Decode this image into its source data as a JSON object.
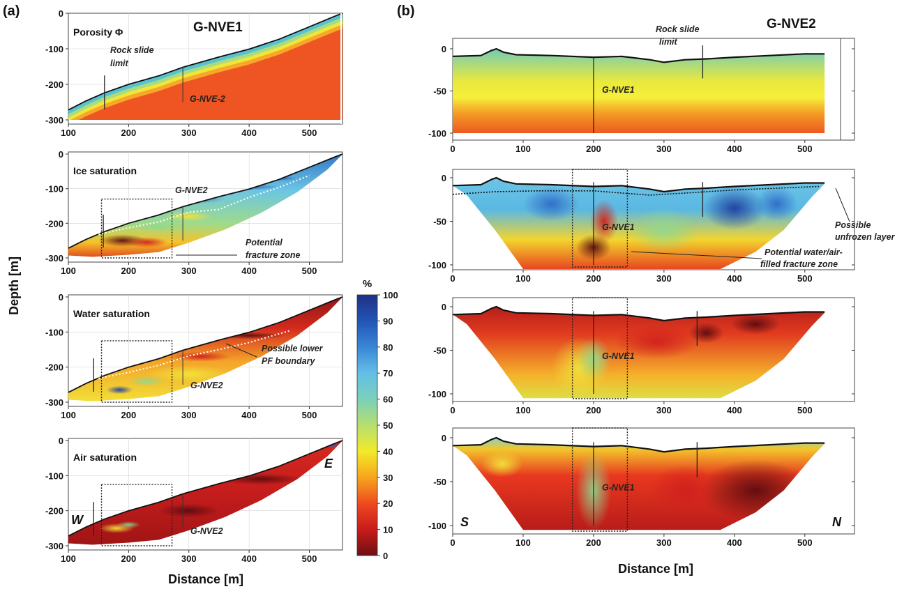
{
  "panel_labels": {
    "a": "(a)",
    "b": "(b)"
  },
  "left": {
    "profile_name": "G-NVE1",
    "y_label": "Depth [m]",
    "x_label": "Distance [m]",
    "x_ticks": [
      "100",
      "200",
      "300",
      "400",
      "500"
    ],
    "y_ticks": [
      "0",
      "-100",
      "-200",
      "-300"
    ],
    "subplots": [
      {
        "title": "Porosity Φ",
        "crossing_label": "G-NVE-2",
        "notes": [
          "Rock slide",
          "limit"
        ]
      },
      {
        "title": "Ice saturation",
        "crossing_label": "G-NVE2",
        "notes": [
          "Potential",
          "fracture zone"
        ]
      },
      {
        "title": "Water saturation",
        "crossing_label": "G-NVE2",
        "notes": [
          "Possible lower",
          "PF boundary"
        ]
      },
      {
        "title": "Air saturation",
        "crossing_label": "G-NVE2",
        "notes": [],
        "dir_left": "W",
        "dir_right": "E"
      }
    ]
  },
  "right": {
    "profile_name": "G-NVE2",
    "x_label": "Distance [m]",
    "x_ticks": [
      "0",
      "100",
      "200",
      "300",
      "400",
      "500"
    ],
    "y_ticks": [
      "0",
      "-50",
      "-100"
    ],
    "crossing_label": "G-NVE1",
    "rock_slide_note": [
      "Rock slide",
      "limit"
    ],
    "ice_notes": {
      "unfrozen": [
        "Possible",
        "unfrozen layer"
      ],
      "fracture": [
        "Potential water/air-",
        "filled fracture zone"
      ]
    },
    "dir_left": "S",
    "dir_right": "N"
  },
  "colorbar": {
    "unit": "%",
    "ticks": [
      "100",
      "90",
      "80",
      "70",
      "60",
      "50",
      "40",
      "30",
      "20",
      "10",
      "0"
    ],
    "colors": [
      "#1f2f86",
      "#2255b4",
      "#3a86d6",
      "#63bfe6",
      "#7bd0b9",
      "#b6df6e",
      "#f2ea2a",
      "#f7a61d",
      "#ee4a1f",
      "#c81c1c",
      "#6e0f12"
    ]
  },
  "chart_data": [
    {
      "type": "heatmap",
      "title": "Porosity Φ",
      "profile": "G-NVE1",
      "xlabel": "Distance [m]",
      "ylabel": "Depth [m]",
      "xlim": [
        100,
        555
      ],
      "ylim": [
        -305,
        0
      ],
      "surface": {
        "x": [
          100,
          200,
          300,
          400,
          500,
          555
        ],
        "depth": [
          -272,
          -200,
          -146,
          -101,
          -38,
          0
        ]
      },
      "annotations": [
        "Rock slide limit",
        "G-NVE-2"
      ],
      "colorbar": {
        "label": "%",
        "range": [
          0,
          100
        ]
      }
    },
    {
      "type": "heatmap",
      "title": "Ice saturation",
      "profile": "G-NVE1",
      "xlabel": "Distance [m]",
      "ylabel": "Depth [m]",
      "xlim": [
        100,
        555
      ],
      "ylim": [
        -305,
        0
      ],
      "annotations": [
        "G-NVE2",
        "Potential fracture zone"
      ],
      "colorbar": {
        "label": "%",
        "range": [
          0,
          100
        ]
      }
    },
    {
      "type": "heatmap",
      "title": "Water saturation",
      "profile": "G-NVE1",
      "xlabel": "Distance [m]",
      "ylabel": "Depth [m]",
      "xlim": [
        100,
        555
      ],
      "ylim": [
        -305,
        0
      ],
      "annotations": [
        "G-NVE2",
        "Possible lower PF boundary"
      ],
      "colorbar": {
        "label": "%",
        "range": [
          0,
          100
        ]
      }
    },
    {
      "type": "heatmap",
      "title": "Air saturation",
      "profile": "G-NVE1",
      "xlabel": "Distance [m]",
      "ylabel": "Depth [m]",
      "xlim": [
        100,
        555
      ],
      "ylim": [
        -305,
        0
      ],
      "annotations": [
        "G-NVE2",
        "W",
        "E"
      ],
      "colorbar": {
        "label": "%",
        "range": [
          0,
          100
        ]
      }
    },
    {
      "type": "heatmap",
      "profile": "G-NVE2",
      "xlabel": "Distance [m]",
      "xlim": [
        0,
        540
      ],
      "ylim": [
        -105,
        5
      ],
      "surface": {
        "x": [
          0,
          40,
          60,
          80,
          120,
          200,
          260,
          300,
          360,
          400,
          450,
          500,
          530
        ],
        "depth": [
          -9,
          -8,
          0,
          -6,
          -8,
          -10,
          -12,
          -15,
          -12,
          -10,
          -8,
          -6,
          -6
        ]
      },
      "annotations": [
        "Rock slide limit",
        "G-NVE1"
      ],
      "colorbar": {
        "label": "%",
        "range": [
          0,
          100
        ]
      }
    },
    {
      "type": "heatmap",
      "profile": "G-NVE2",
      "xlabel": "Distance [m]",
      "xlim": [
        0,
        540
      ],
      "ylim": [
        -105,
        5
      ],
      "annotations": [
        "G-NVE1",
        "Possible unfrozen layer",
        "Potential water/air-filled fracture zone"
      ],
      "colorbar": {
        "label": "%",
        "range": [
          0,
          100
        ]
      }
    },
    {
      "type": "heatmap",
      "profile": "G-NVE2",
      "xlabel": "Distance [m]",
      "xlim": [
        0,
        540
      ],
      "ylim": [
        -105,
        5
      ],
      "annotations": [
        "G-NVE1"
      ],
      "colorbar": {
        "label": "%",
        "range": [
          0,
          100
        ]
      }
    },
    {
      "type": "heatmap",
      "profile": "G-NVE2",
      "xlabel": "Distance [m]",
      "xlim": [
        0,
        540
      ],
      "ylim": [
        -105,
        5
      ],
      "annotations": [
        "G-NVE1",
        "S",
        "N"
      ],
      "colorbar": {
        "label": "%",
        "range": [
          0,
          100
        ]
      }
    }
  ]
}
